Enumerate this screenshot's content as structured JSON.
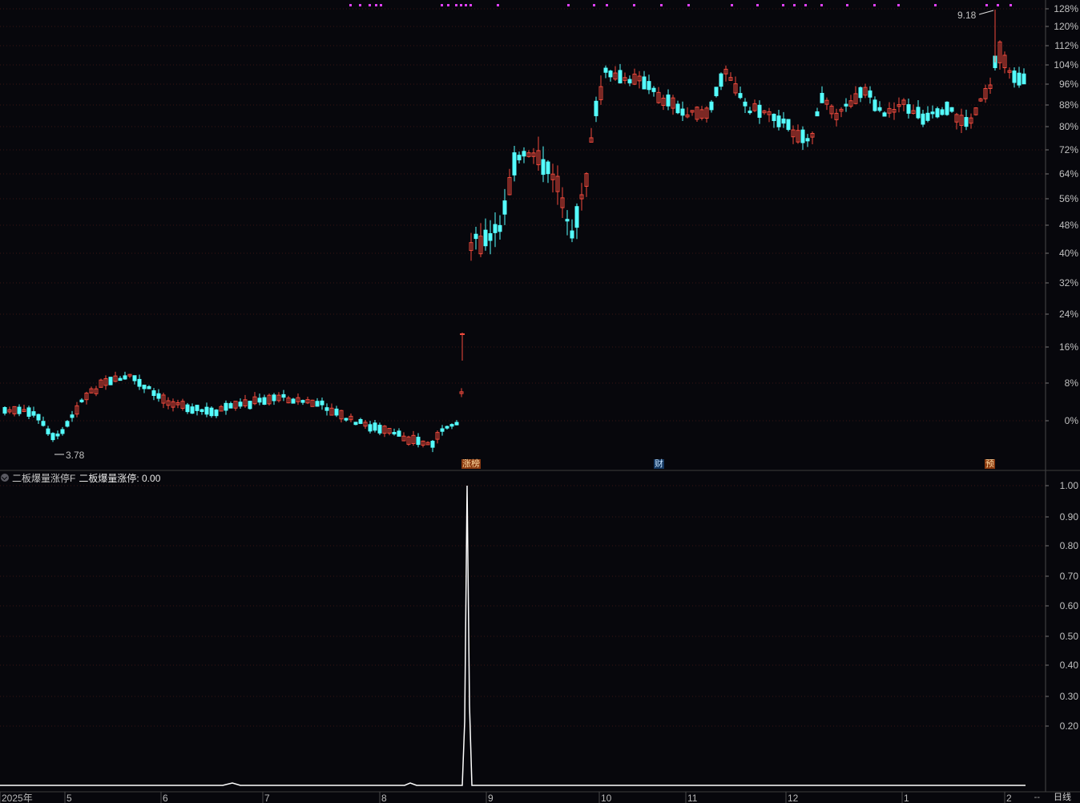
{
  "main_chart": {
    "y_ticks": [
      "128%",
      "120%",
      "112%",
      "104%",
      "96%",
      "88%",
      "80%",
      "72%",
      "64%",
      "56%",
      "48%",
      "40%",
      "32%",
      "24%",
      "16%",
      "8%",
      "0%"
    ],
    "high_label": "9.18",
    "low_label": "3.78",
    "event_tags": [
      "涨榜",
      "财",
      "预"
    ]
  },
  "indicator": {
    "name": "二板爆量涨停F",
    "value_text": "二板爆量涨停: 0.00",
    "y_ticks": [
      "1.00",
      "0.90",
      "0.80",
      "0.70",
      "0.60",
      "0.50",
      "0.40",
      "0.30",
      "0.20"
    ]
  },
  "x_axis": {
    "months": [
      "2025年",
      "5",
      "6",
      "7",
      "8",
      "9",
      "10",
      "11",
      "12",
      "1",
      "2"
    ]
  },
  "period_label": "日线",
  "scroll_indicator": "--",
  "colors": {
    "up": "#f04a3c",
    "down": "#54ffff",
    "grid": "#3a1414",
    "marker": "#e040fb",
    "line": "#ffffff"
  },
  "chart_data": {
    "type": "candlestick",
    "indicator_series": {
      "name": "二板爆量涨停",
      "spike_value": 1.0,
      "base_value": 0.0
    }
  }
}
